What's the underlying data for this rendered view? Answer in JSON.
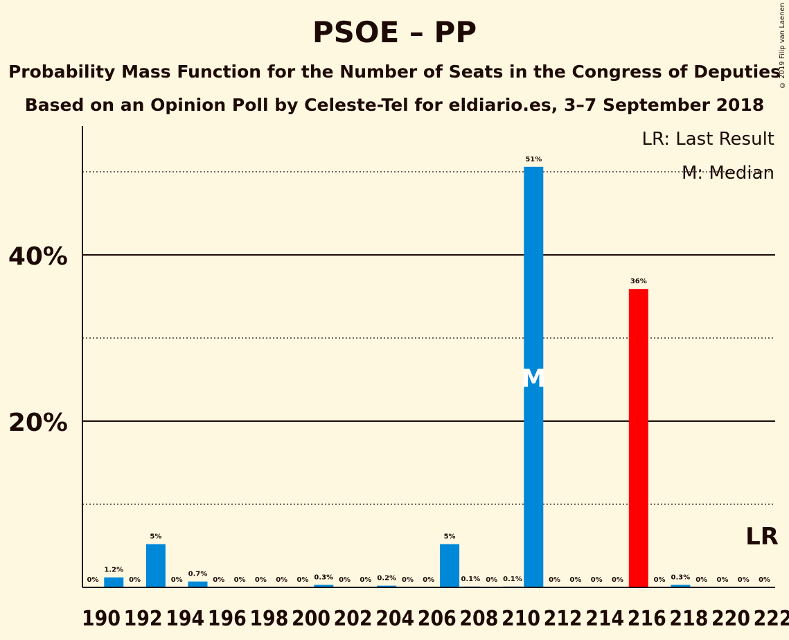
{
  "title": "PSOE – PP",
  "subtitle1": "Probability Mass Function for the Number of Seats in the Congress of Deputies",
  "subtitle2": "Based on an Opinion Poll by Celeste-Tel for eldiario.es, 3–7 September 2018",
  "copyright": "© 2019 Filip van Laenen",
  "legend": {
    "lr": "LR: Last Result",
    "median": "M: Median"
  },
  "markers": {
    "median_label": "M",
    "lr_label": "LR"
  },
  "colors": {
    "bar": "#0088D8",
    "last_result": "#FF0000",
    "background": "#FEF8E1",
    "text": "#1E0A05"
  },
  "chart_data": {
    "type": "bar",
    "x": [
      190,
      191,
      192,
      193,
      194,
      195,
      196,
      197,
      198,
      199,
      200,
      201,
      202,
      203,
      204,
      205,
      206,
      207,
      208,
      209,
      210,
      211,
      212,
      213,
      214,
      215,
      216,
      217,
      218,
      219,
      220,
      221,
      222
    ],
    "values": [
      0,
      1.2,
      0,
      5.2,
      0,
      0.7,
      0,
      0,
      0,
      0,
      0,
      0.3,
      0,
      0,
      0.2,
      0,
      0,
      5.2,
      0.1,
      0,
      0.1,
      50.6,
      0,
      0,
      0,
      0,
      35.9,
      0,
      0.3,
      0,
      0,
      0,
      0
    ],
    "labels": [
      "0%",
      "1.2%",
      "0%",
      "5%",
      "0%",
      "0.7%",
      "0%",
      "0%",
      "0%",
      "0%",
      "0%",
      "0.3%",
      "0%",
      "0%",
      "0.2%",
      "0%",
      "0%",
      "5%",
      "0.1%",
      "0%",
      "0.1%",
      "51%",
      "0%",
      "0%",
      "0%",
      "0%",
      "36%",
      "0%",
      "0.3%",
      "0%",
      "0%",
      "0%",
      "0%"
    ],
    "xticks": [
      "190",
      "192",
      "194",
      "196",
      "198",
      "200",
      "202",
      "204",
      "206",
      "208",
      "210",
      "212",
      "214",
      "216",
      "218",
      "220",
      "222"
    ],
    "yticks": [
      "20%",
      "40%"
    ],
    "ylim": [
      0,
      55
    ],
    "median": 211,
    "last_result": 216,
    "last_result_off_chart": 222,
    "grid": true
  }
}
